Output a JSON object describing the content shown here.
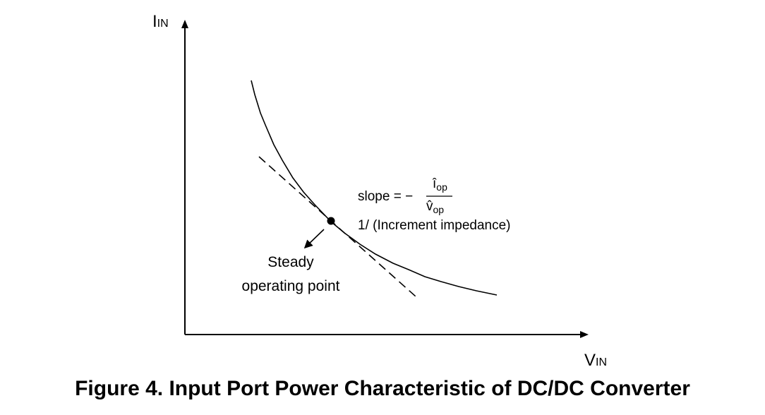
{
  "axes": {
    "y_label_main": "I",
    "y_label_sub": "IN",
    "x_label_main": "V",
    "x_label_sub": "IN"
  },
  "annotation": {
    "slope_prefix": "slope = −",
    "numerator_char": "î",
    "numerator_sub": "op",
    "denominator_char": "v̂",
    "denominator_sub": "op",
    "impedance_text": "1/ (Increment impedance)",
    "steady_line1": "Steady",
    "steady_line2": "operating point"
  },
  "caption": "Figure 4. Input Port Power Characteristic of DC/DC Converter",
  "colors": {
    "stroke": "#000000",
    "background": "#ffffff"
  }
}
